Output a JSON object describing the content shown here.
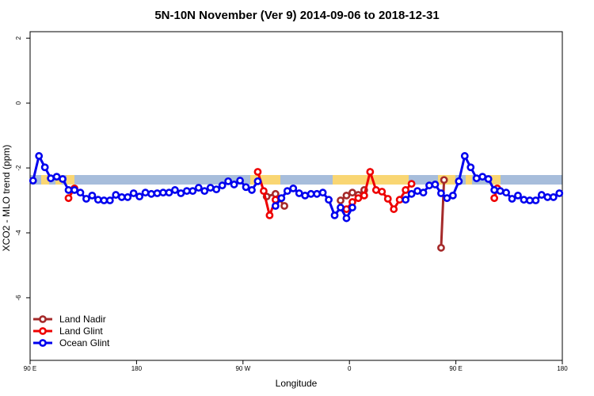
{
  "chart_data": {
    "type": "line",
    "title": "5N-10N November (Ver 9)   2014-09-06 to 2018-12-31",
    "x_label": "Longitude",
    "y_label": "XCO2 - MLO trend (ppm)",
    "xlim": [
      90,
      540
    ],
    "ylim": [
      -7.93,
      2.2
    ],
    "xticks": [
      {
        "value": 90,
        "label": "90 E"
      },
      180,
      {
        "value": 270,
        "label": "90 W"
      },
      {
        "value": 360,
        "label": "0"
      },
      {
        "value": 450,
        "label": "90 E"
      },
      {
        "value": 540,
        "label": "180"
      }
    ],
    "yticks": [
      2,
      0,
      -2,
      -4,
      -6
    ],
    "legend": "bottom-left",
    "series": [
      {
        "name": "Land Nadir",
        "color": "#a52a2a",
        "x": [
          290,
          297.5,
          305,
          null,
          352.5,
          357.5,
          362.5,
          367.5,
          372.5,
          null,
          437.5,
          440
        ],
        "values": [
          -2.88,
          -2.8,
          -3.17,
          null,
          -3.0,
          -2.85,
          -2.76,
          -2.83,
          -2.68,
          null,
          -4.46,
          -2.37
        ]
      },
      {
        "name": "Land Glint",
        "color": "#ee0000",
        "x": [
          122.5,
          127.5,
          null,
          282.5,
          287.5,
          292.5,
          297.5,
          null,
          357.5,
          362.5,
          367.5,
          372.5,
          377.5,
          382.5,
          387.5,
          392.5,
          397.5,
          402.5,
          407.5,
          412.5,
          null,
          482.5,
          485
        ],
        "values": [
          -2.93,
          -2.63,
          null,
          -2.12,
          -2.71,
          -3.46,
          -2.98,
          null,
          -3.27,
          -3.05,
          -2.93,
          -2.85,
          -2.12,
          -2.68,
          -2.73,
          -2.95,
          -3.27,
          -2.98,
          -2.68,
          -2.49,
          null,
          -2.93,
          -2.63
        ]
      },
      {
        "name": "Ocean Glint",
        "color": "#0000ee",
        "x": [
          92.5,
          97.5,
          102.5,
          107.5,
          112.5,
          117.5,
          122.5,
          127.5,
          132.5,
          137.5,
          142.5,
          147.5,
          152.5,
          157.5,
          162.5,
          167.5,
          172.5,
          177.5,
          182.5,
          187.5,
          192.5,
          197.5,
          202.5,
          207.5,
          212.5,
          217.5,
          222.5,
          227.5,
          232.5,
          237.5,
          242.5,
          247.5,
          252.5,
          257.5,
          262.5,
          267.5,
          272.5,
          277.5,
          282.5,
          null,
          297.5,
          302.5,
          307.5,
          312.5,
          317.5,
          322.5,
          327.5,
          332.5,
          337.5,
          342.5,
          347.5,
          352.5,
          357.5,
          362.5,
          null,
          407.5,
          412.5,
          417.5,
          422.5,
          427.5,
          432.5,
          437.5,
          442.5,
          447.5,
          452.5,
          457.5,
          462.5,
          467.5,
          472.5,
          477.5,
          482.5,
          487.5,
          492.5,
          497.5,
          502.5,
          507.5,
          512.5,
          517.5,
          522.5,
          527.5,
          532.5,
          537.5
        ],
        "values": [
          -2.39,
          -1.63,
          -1.98,
          -2.32,
          -2.27,
          -2.34,
          -2.68,
          -2.68,
          -2.76,
          -2.95,
          -2.85,
          -2.98,
          -3.0,
          -3.0,
          -2.83,
          -2.9,
          -2.9,
          -2.78,
          -2.88,
          -2.76,
          -2.8,
          -2.78,
          -2.76,
          -2.76,
          -2.68,
          -2.78,
          -2.71,
          -2.71,
          -2.61,
          -2.71,
          -2.61,
          -2.66,
          -2.54,
          -2.41,
          -2.51,
          -2.39,
          -2.59,
          -2.68,
          -2.41,
          null,
          -3.17,
          -2.93,
          -2.71,
          -2.63,
          -2.78,
          -2.85,
          -2.8,
          -2.8,
          -2.76,
          -2.98,
          -3.46,
          -3.22,
          -3.55,
          -3.22,
          null,
          -2.98,
          -2.8,
          -2.71,
          -2.76,
          -2.54,
          -2.51,
          -2.78,
          -2.93,
          -2.85,
          -2.41,
          -1.63,
          -1.98,
          -2.32,
          -2.27,
          -2.34,
          -2.68,
          -2.71,
          -2.76,
          -2.95,
          -2.85,
          -2.98,
          -3.0,
          -3.0,
          -2.83,
          -2.9,
          -2.9,
          -2.78
        ]
      }
    ]
  }
}
